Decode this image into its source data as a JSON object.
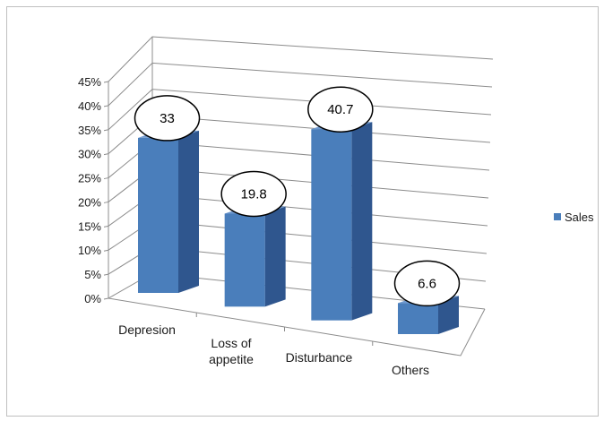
{
  "chart_data": {
    "type": "bar",
    "style": "3d-column",
    "categories": [
      "Depresion",
      "Loss of appetite",
      "Disturbance",
      "Others"
    ],
    "category_lines": [
      [
        "Depresion"
      ],
      [
        "Loss of",
        "appetite"
      ],
      [
        "Disturbance"
      ],
      [
        "Others"
      ]
    ],
    "series": [
      {
        "name": "Sales",
        "values": [
          33,
          19.8,
          40.7,
          6.6
        ],
        "color": "#4a7ebb"
      }
    ],
    "data_labels": [
      "33",
      "19.8",
      "40.7",
      "6.6"
    ],
    "y_ticks": [
      "0%",
      "5%",
      "10%",
      "15%",
      "20%",
      "25%",
      "30%",
      "35%",
      "40%",
      "45%"
    ],
    "ylim": [
      0,
      45
    ],
    "y_unit": "%",
    "grid": true,
    "legend_position": "right",
    "title": "",
    "xlabel": "",
    "ylabel": ""
  },
  "colors": {
    "bar_front": "#4a7ebb",
    "bar_side": "#2f568e",
    "bar_top": "#6f99cf",
    "grid": "#8c8c8c",
    "text": "#1a1a1a"
  }
}
